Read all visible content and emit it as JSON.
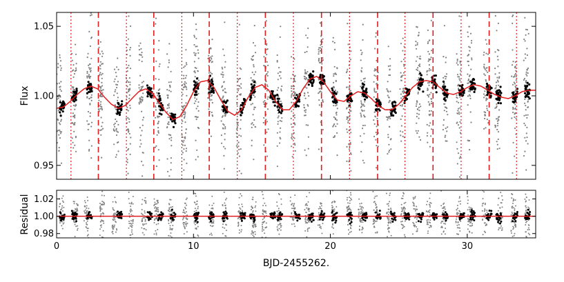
{
  "chart_data": [
    {
      "type": "scatter",
      "panel": "flux",
      "ylabel": "Flux",
      "xlim": [
        0,
        35
      ],
      "ylim": [
        0.94,
        1.06
      ],
      "yticks": [
        0.95,
        1.0,
        1.05
      ],
      "ytick_labels": [
        "0.95",
        "1.00",
        "1.05"
      ],
      "grid": false,
      "colors": {
        "model": "#e31a1c",
        "binned": "#000000",
        "raw": "#808080",
        "dashed": "#e31a1c",
        "dotted": "#e31a1c"
      },
      "vlines_dashed": [
        3.05,
        7.1,
        11.15,
        15.25,
        19.35,
        23.45,
        27.5,
        31.6
      ],
      "vlines_dotted": [
        1.05,
        5.1,
        9.15,
        13.2,
        17.3,
        21.4,
        25.45,
        29.55,
        33.6
      ],
      "model_curve": {
        "x": [
          0,
          0.5,
          1,
          1.5,
          2,
          2.5,
          3,
          3.5,
          4,
          4.5,
          5,
          5.5,
          6,
          6.5,
          7,
          7.5,
          8,
          8.5,
          9,
          9.5,
          10,
          10.5,
          11,
          11.5,
          12,
          12.5,
          13,
          13.5,
          14,
          14.5,
          15,
          15.5,
          16,
          16.5,
          17,
          17.5,
          18,
          18.5,
          19,
          19.5,
          20,
          20.5,
          21,
          21.5,
          22,
          22.5,
          23,
          23.5,
          24,
          24.5,
          25,
          25.5,
          26,
          26.5,
          27,
          27.5,
          28,
          28.5,
          29,
          29.5,
          30,
          30.5,
          31,
          31.5,
          32,
          32.5,
          33,
          33.5,
          34,
          34.5,
          35
        ],
        "y": [
          0.991,
          0.992,
          0.996,
          1.001,
          1.005,
          1.007,
          1.005,
          0.999,
          0.994,
          0.991,
          0.993,
          0.998,
          1.003,
          1.005,
          1.002,
          0.995,
          0.988,
          0.983,
          0.985,
          0.993,
          1.003,
          1.01,
          1.011,
          1.006,
          0.997,
          0.989,
          0.986,
          0.99,
          0.999,
          1.006,
          1.008,
          1.004,
          0.996,
          0.99,
          0.99,
          0.996,
          1.005,
          1.012,
          1.014,
          1.01,
          1.003,
          0.997,
          0.996,
          1.0,
          1.003,
          1.002,
          0.998,
          0.993,
          0.99,
          0.99,
          0.994,
          1.0,
          1.006,
          1.01,
          1.011,
          1.01,
          1.006,
          1.002,
          1.001,
          1.003,
          1.006,
          1.008,
          1.007,
          1.004,
          1.001,
          0.999,
          0.998,
          1.0,
          1.003,
          1.004,
          1.004
        ]
      }
    },
    {
      "type": "scatter",
      "panel": "residual",
      "xlabel": "BJD-2455262.",
      "ylabel": "Residual",
      "xlim": [
        0,
        35
      ],
      "ylim": [
        0.975,
        1.03
      ],
      "xticks": [
        0,
        10,
        20,
        30
      ],
      "xtick_labels": [
        "0",
        "10",
        "20",
        "30"
      ],
      "yticks": [
        0.98,
        1.0,
        1.02
      ],
      "ytick_labels": [
        "0.98",
        "1.00",
        "1.02"
      ],
      "grid": false,
      "reference_line": 1.0
    }
  ]
}
